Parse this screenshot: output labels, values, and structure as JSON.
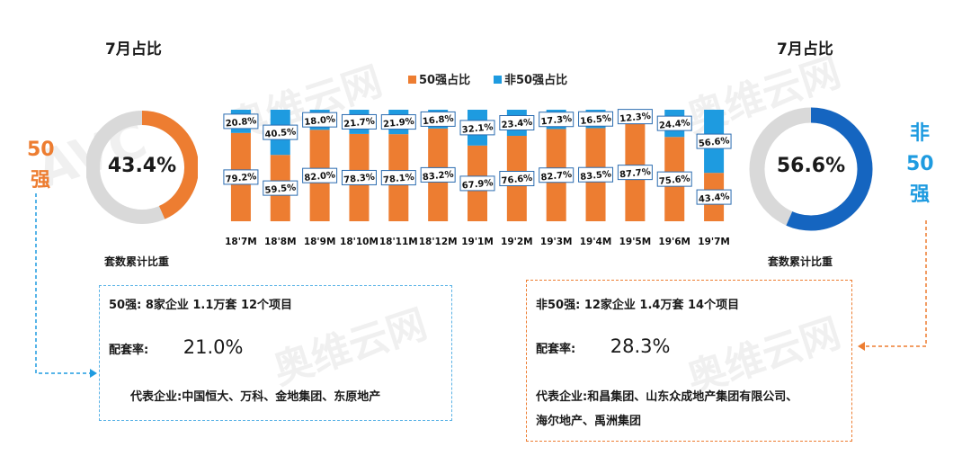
{
  "left": {
    "title": "7月占比",
    "side_label_chars": [
      "50",
      "强"
    ],
    "donut_value": "43.4%",
    "donut_fraction": 0.434,
    "caption": "套数累计比重",
    "info": {
      "line1": "50强:   8家企业    1.1万套    12个项目",
      "rate_label": "配套率:",
      "rate_value": "21.0%",
      "companies": "代表企业:中国恒大、万科、金地集团、东原地产"
    }
  },
  "right": {
    "title": "7月占比",
    "side_label_chars": [
      "非",
      "50",
      "强"
    ],
    "donut_value": "56.6%",
    "donut_fraction": 0.566,
    "caption": "套数累计比重",
    "info": {
      "line1": "非50强:    12家企业    1.4万套    14个项目",
      "rate_label": "配套率:",
      "rate_value": "28.3%",
      "companies_line1": "代表企业:和昌集团、山东众成地产集团有限公司、",
      "companies_line2": "海尔地产、禹洲集团"
    }
  },
  "watermark": {
    "main": "奥维云网",
    "sub": "ALL VIEW CLOUD"
  },
  "colors": {
    "orange": "#ED7D31",
    "blue": "#1E9BE0",
    "donut_blue": "#1565C0",
    "gray": "#D9D9D9",
    "side_blue": "#1E9BE0"
  },
  "chart_data": {
    "type": "bar",
    "stacked": true,
    "categories": [
      "18'7M",
      "18'8M",
      "18'9M",
      "18'10M",
      "18'11M",
      "18'12M",
      "19'1M",
      "19'2M",
      "19'3M",
      "19'4M",
      "19'5M",
      "19'6M",
      "19'7M"
    ],
    "series": [
      {
        "name": "50强占比",
        "values": [
          79.2,
          59.5,
          82.0,
          78.3,
          78.1,
          83.2,
          67.9,
          76.6,
          82.7,
          83.5,
          87.7,
          75.6,
          43.4
        ],
        "labels": [
          "79.2%",
          "59.5%",
          "82.0%",
          "78.3%",
          "78.1%",
          "83.2%",
          "67.9%",
          "76.6%",
          "82.7%",
          "83.5%",
          "87.7%",
          "75.6%",
          "43.4%"
        ]
      },
      {
        "name": "非50强占比",
        "values": [
          20.8,
          40.5,
          18.0,
          21.7,
          21.9,
          16.8,
          32.1,
          23.4,
          17.3,
          16.5,
          12.3,
          24.4,
          56.6
        ],
        "labels": [
          "20.8%",
          "40.5%",
          "18.0%",
          "21.7%",
          "21.9%",
          "16.8%",
          "32.1%",
          "23.4%",
          "17.3%",
          "16.5%",
          "12.3%",
          "24.4%",
          "56.6%"
        ]
      }
    ],
    "ylim": [
      0,
      100
    ],
    "legend_position": "top-center",
    "grid": false
  }
}
